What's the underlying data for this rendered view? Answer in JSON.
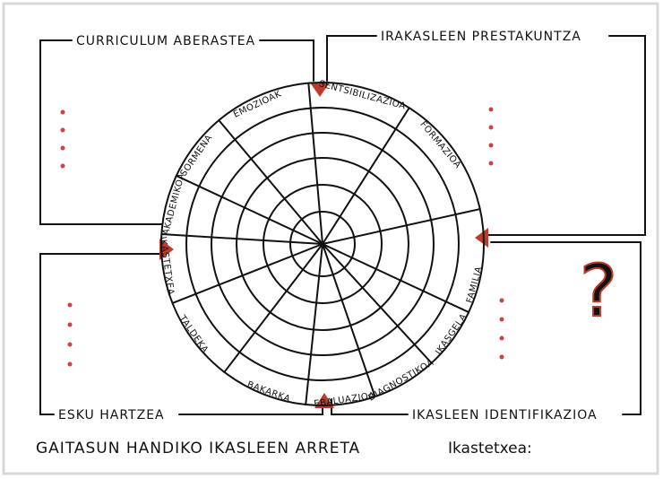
{
  "quadrants": {
    "top_left": "CURRICULUM ABERASTEA",
    "top_right": "IRAKASLEEN PRESTAKUNTZA",
    "bottom_left": "ESKU HARTZEA",
    "bottom_right": "IKASLEEN IDENTIFIKAZIOA"
  },
  "spokes": [
    "SENTSIBILIZAZIOA",
    "FORMAZIOA",
    "FAMILIA",
    "IKASGELA",
    "DIAGNOSTIKOA",
    "EBALUAZIOA",
    "BAKARKA",
    "TALDEKA",
    "IKASTETXEA",
    "AKADEMIKOA",
    "SORMENA",
    "EMOZIOAK"
  ],
  "question_mark": "?",
  "footer": {
    "title": "GAITASUN HANDIKO IKASLEEN ARRETA",
    "school": "Ikastetxea:"
  }
}
